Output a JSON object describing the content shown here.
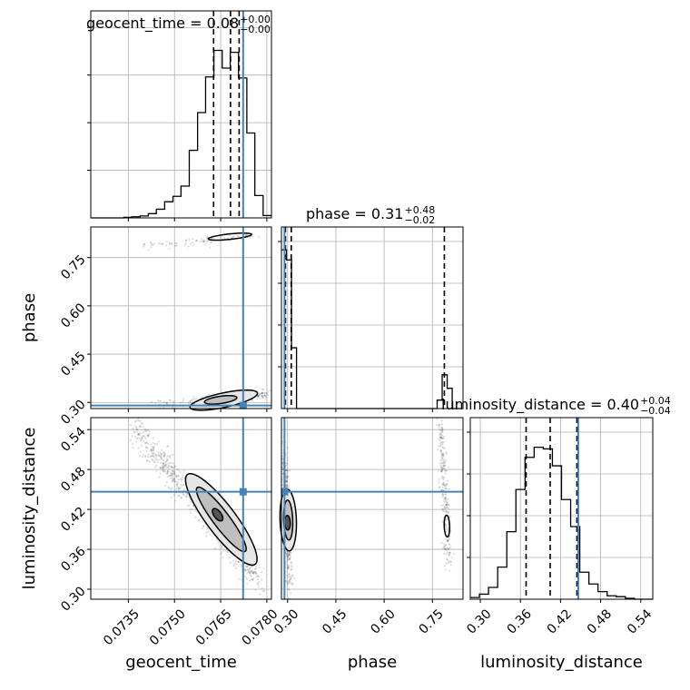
{
  "chart_data": {
    "type": "corner",
    "parameters": [
      "geocent_time",
      "phase",
      "luminosity_distance"
    ],
    "axis_labels": {
      "geocent_time": "geocent_time",
      "phase": "phase",
      "luminosity_distance": "luminosity_distance"
    },
    "axis_ranges": {
      "geocent_time": [
        0.07228,
        0.07815
      ],
      "phase": [
        0.281,
        0.845
      ],
      "luminosity_distance": [
        0.285,
        0.558
      ]
    },
    "ticks": {
      "geocent_time": [
        "0.0735",
        "0.0750",
        "0.0765",
        "0.0780"
      ],
      "phase": [
        "0.30",
        "0.45",
        "0.60",
        "0.75"
      ],
      "luminosity_distance": [
        "0.30",
        "0.36",
        "0.42",
        "0.48",
        "0.54"
      ]
    },
    "diagonal_titles": [
      {
        "param": "geocent_time",
        "prefix": "geocent_time = ",
        "median": "0.08",
        "plus": "+0.00",
        "minus": "−0.00"
      },
      {
        "param": "phase",
        "prefix": "phase = ",
        "median": "0.31",
        "plus": "+0.48",
        "minus": "−0.02"
      },
      {
        "param": "luminosity_distance",
        "prefix": "luminosity_distance = ",
        "median": "0.40",
        "plus": "+0.04",
        "minus": "−0.04"
      }
    ],
    "truths": {
      "geocent_time": 0.07723,
      "phase": 0.2905,
      "luminosity_distance": 0.4465
    },
    "quantiles": {
      "geocent_time": [
        0.07627,
        0.07682,
        0.0771
      ],
      "phase": [
        0.2935,
        0.3115,
        0.787
      ],
      "luminosity_distance": [
        0.3685,
        0.4045,
        0.4445
      ]
    },
    "histograms": {
      "geocent_time": {
        "edges": [
          0.07228,
          0.07255,
          0.07281,
          0.07308,
          0.07335,
          0.07361,
          0.07388,
          0.07415,
          0.07441,
          0.07468,
          0.07495,
          0.07521,
          0.07548,
          0.07575,
          0.07601,
          0.07628,
          0.07655,
          0.07681,
          0.07708,
          0.07735,
          0.07761,
          0.07788,
          0.07815
        ],
        "counts": [
          0,
          0,
          0,
          0,
          0.003,
          0.006,
          0.01,
          0.022,
          0.045,
          0.084,
          0.112,
          0.165,
          0.351,
          0.547,
          0.732,
          0.87,
          0.778,
          0.86,
          0.727,
          0.441,
          0.116,
          0.012
        ]
      },
      "phase": {
        "edges": [
          0.281,
          0.2966,
          0.3122,
          0.3278,
          0.3434,
          0.359,
          0.3746,
          0.3902,
          0.4058,
          0.4214,
          0.437,
          0.4526,
          0.4682,
          0.4838,
          0.4994,
          0.515,
          0.5306,
          0.5462,
          0.5618,
          0.5774,
          0.593,
          0.6086,
          0.6242,
          0.6398,
          0.6554,
          0.671,
          0.6866,
          0.7022,
          0.7178,
          0.7334,
          0.749,
          0.7646,
          0.7802,
          0.7958,
          0.8114,
          0.827,
          0.845
        ],
        "counts": [
          0.94,
          0.88,
          0.36,
          0.0,
          0,
          0,
          0,
          0,
          0,
          0,
          0,
          0,
          0,
          0,
          0,
          0,
          0,
          0,
          0,
          0,
          0,
          0,
          0,
          0,
          0,
          0,
          0,
          0,
          0,
          0,
          0,
          0.05,
          0.2,
          0.12,
          0,
          0
        ]
      },
      "luminosity_distance": {
        "edges": [
          0.285,
          0.29865,
          0.3123,
          0.32595,
          0.3396,
          0.35325,
          0.3669,
          0.38055,
          0.3942,
          0.40785,
          0.4215,
          0.43515,
          0.4488,
          0.46245,
          0.4761,
          0.48975,
          0.5034,
          0.51705,
          0.5307,
          0.54435,
          0.558
        ],
        "counts": [
          0.01,
          0.03,
          0.07,
          0.19,
          0.4,
          0.65,
          0.84,
          0.9,
          0.89,
          0.79,
          0.59,
          0.43,
          0.16,
          0.09,
          0.045,
          0.02,
          0.015,
          0.005,
          0,
          0
        ]
      }
    }
  }
}
